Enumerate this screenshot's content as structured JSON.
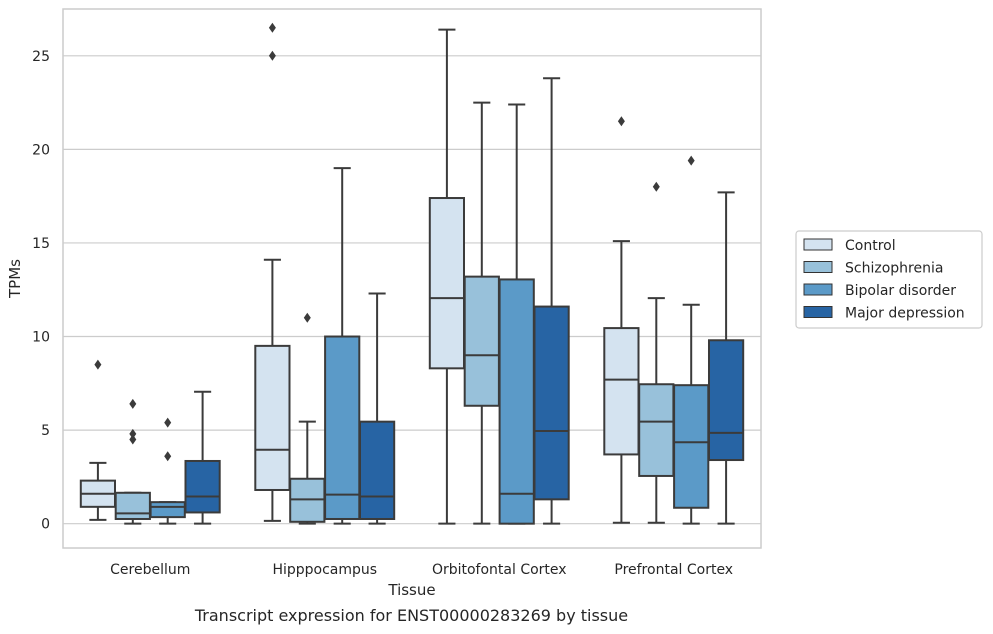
{
  "caption": "Transcript expression for ENST00000283269 by tissue",
  "chart_data": {
    "type": "box",
    "xlabel": "Tissue",
    "ylabel": "TPMs",
    "ylim": [
      -1.3,
      27.5
    ],
    "yticks": [
      0,
      5,
      10,
      15,
      20,
      25
    ],
    "grid": "horizontal",
    "legend_position": "right",
    "categories": [
      "Cerebellum",
      "Hipppocampus",
      "Orbitofontal Cortex",
      "Prefrontal Cortex"
    ],
    "series": [
      {
        "name": "Control",
        "color": "#d4e3f0",
        "boxes": [
          {
            "whisker_low": 0.2,
            "q1": 0.9,
            "median": 1.6,
            "q3": 2.3,
            "whisker_high": 3.25,
            "outliers": [
              8.5
            ]
          },
          {
            "whisker_low": 0.15,
            "q1": 1.8,
            "median": 3.95,
            "q3": 9.5,
            "whisker_high": 14.1,
            "outliers": [
              25.0,
              26.5
            ]
          },
          {
            "whisker_low": 0.0,
            "q1": 8.3,
            "median": 12.05,
            "q3": 17.4,
            "whisker_high": 26.4,
            "outliers": []
          },
          {
            "whisker_low": 0.05,
            "q1": 3.7,
            "median": 7.7,
            "q3": 10.45,
            "whisker_high": 15.1,
            "outliers": [
              21.5
            ]
          }
        ]
      },
      {
        "name": "Schizophrenia",
        "color": "#98c1da",
        "boxes": [
          {
            "whisker_low": 0.0,
            "q1": 0.25,
            "median": 0.55,
            "q3": 1.65,
            "whisker_high": 1.65,
            "outliers": [
              4.5,
              4.8,
              6.4
            ]
          },
          {
            "whisker_low": 0.0,
            "q1": 0.1,
            "median": 1.3,
            "q3": 2.4,
            "whisker_high": 5.45,
            "outliers": [
              11.0
            ]
          },
          {
            "whisker_low": 0.0,
            "q1": 6.3,
            "median": 9.0,
            "q3": 13.2,
            "whisker_high": 22.5,
            "outliers": []
          },
          {
            "whisker_low": 0.05,
            "q1": 2.55,
            "median": 5.45,
            "q3": 7.45,
            "whisker_high": 12.05,
            "outliers": [
              18.0
            ]
          }
        ]
      },
      {
        "name": "Bipolar disorder",
        "color": "#5b9ac8",
        "boxes": [
          {
            "whisker_low": 0.0,
            "q1": 0.35,
            "median": 0.9,
            "q3": 1.15,
            "whisker_high": 1.15,
            "outliers": [
              3.6,
              5.4
            ]
          },
          {
            "whisker_low": 0.0,
            "q1": 0.25,
            "median": 1.55,
            "q3": 10.0,
            "whisker_high": 19.0,
            "outliers": []
          },
          {
            "whisker_low": 0.0,
            "q1": 0.0,
            "median": 1.6,
            "q3": 13.05,
            "whisker_high": 22.4,
            "outliers": []
          },
          {
            "whisker_low": 0.0,
            "q1": 0.85,
            "median": 4.35,
            "q3": 7.4,
            "whisker_high": 11.7,
            "outliers": [
              19.4
            ]
          }
        ]
      },
      {
        "name": "Major depression",
        "color": "#2764a4",
        "boxes": [
          {
            "whisker_low": 0.0,
            "q1": 0.6,
            "median": 1.45,
            "q3": 3.35,
            "whisker_high": 7.05,
            "outliers": []
          },
          {
            "whisker_low": 0.0,
            "q1": 0.25,
            "median": 1.45,
            "q3": 5.45,
            "whisker_high": 12.3,
            "outliers": []
          },
          {
            "whisker_low": 0.0,
            "q1": 1.3,
            "median": 4.95,
            "q3": 11.6,
            "whisker_high": 23.8,
            "outliers": []
          },
          {
            "whisker_low": 0.0,
            "q1": 3.4,
            "median": 4.85,
            "q3": 9.8,
            "whisker_high": 17.7,
            "outliers": []
          }
        ]
      }
    ]
  }
}
